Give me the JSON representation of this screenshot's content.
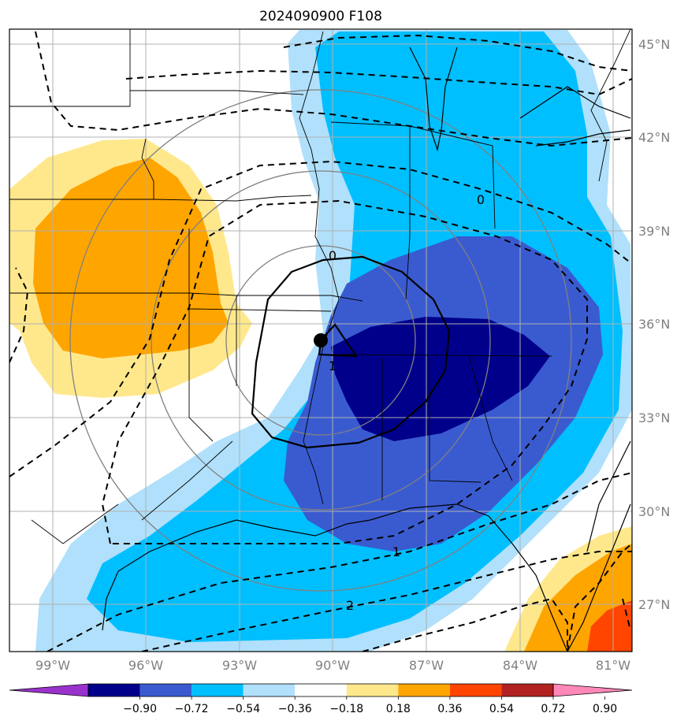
{
  "title": "2024090900 F108",
  "lat_labels": [
    "45°N",
    "42°N",
    "39°N",
    "36°N",
    "33°N",
    "30°N",
    "27°N"
  ],
  "lon_labels": [
    "99°W",
    "96°W",
    "93°W",
    "90°W",
    "87°W",
    "84°W",
    "81°W"
  ],
  "colorbar": {
    "tick_labels": [
      "−0.90",
      "−0.72",
      "−0.54",
      "−0.36",
      "−0.18",
      "0.18",
      "0.36",
      "0.54",
      "0.72",
      "0.90"
    ],
    "colors": [
      "#9932cc",
      "#00008b",
      "#3a5bd0",
      "#00bfff",
      "#b0e0fb",
      "#ffffff",
      "#ffe88c",
      "#ffa500",
      "#ff4500",
      "#b22222",
      "#ff88b8"
    ]
  },
  "contour_labels": [
    "0",
    "0",
    "1",
    "1",
    "2"
  ],
  "colors": {
    "deep_blue": "#00008b",
    "royal_blue": "#3a5bd0",
    "sky_blue": "#00bfff",
    "light_blue": "#b0e0fb",
    "light_yellow": "#ffe88c",
    "orange": "#ffa500",
    "red_orange": "#ff4500",
    "grid": "#b0b0b0",
    "range_ring": "#808080"
  },
  "marker": {
    "type": "filled-circle",
    "color": "#000000"
  }
}
